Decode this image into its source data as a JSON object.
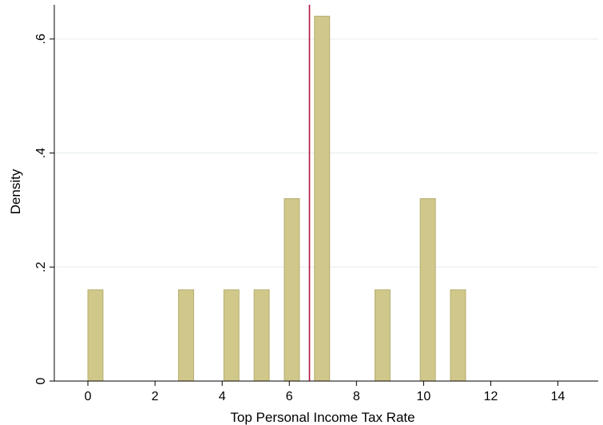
{
  "chart_data": {
    "type": "bar",
    "title": "",
    "xlabel": "Top Personal Income Tax Rate",
    "ylabel": "Density",
    "xlim": [
      -1,
      15.2
    ],
    "ylim": [
      0,
      0.66
    ],
    "x_ticks": [
      0,
      2,
      4,
      6,
      8,
      10,
      12,
      14
    ],
    "x_tick_labels": [
      "0",
      "2",
      "4",
      "6",
      "8",
      "10",
      "12",
      "14"
    ],
    "y_ticks": [
      0,
      0.2,
      0.4,
      0.6
    ],
    "y_tick_labels": [
      "0",
      ".2",
      ".4",
      ".6"
    ],
    "grid": true,
    "bin_width": 0.45,
    "bars": [
      {
        "x_start": 0.0,
        "value": 0.16
      },
      {
        "x_start": 2.7,
        "value": 0.16
      },
      {
        "x_start": 4.05,
        "value": 0.16
      },
      {
        "x_start": 4.95,
        "value": 0.16
      },
      {
        "x_start": 5.85,
        "value": 0.32
      },
      {
        "x_start": 6.75,
        "value": 0.64
      },
      {
        "x_start": 8.55,
        "value": 0.16
      },
      {
        "x_start": 9.9,
        "value": 0.32
      },
      {
        "x_start": 10.8,
        "value": 0.16
      }
    ],
    "reference_line": {
      "x": 6.6,
      "color": "#b3123b"
    },
    "bar_color": "#d0c78a",
    "bar_edge_color": "#b5ad6e"
  }
}
